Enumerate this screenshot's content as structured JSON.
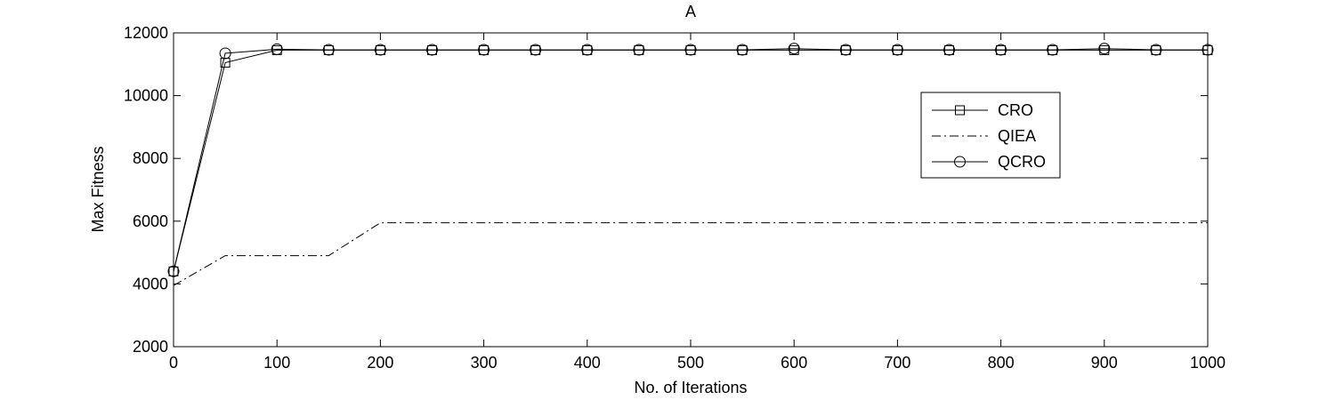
{
  "chart_data": {
    "type": "line",
    "title": "A",
    "xlabel": "No. of Iterations",
    "ylabel": "Max Fitness",
    "xlim": [
      0,
      1000
    ],
    "ylim": [
      2000,
      12000
    ],
    "xticks": [
      0,
      100,
      200,
      300,
      400,
      500,
      600,
      700,
      800,
      900,
      1000
    ],
    "yticks": [
      2000,
      4000,
      6000,
      8000,
      10000,
      12000
    ],
    "grid": false,
    "legend_position": "upper-right",
    "x": [
      0,
      50,
      100,
      150,
      200,
      250,
      300,
      350,
      400,
      450,
      500,
      550,
      600,
      650,
      700,
      750,
      800,
      850,
      900,
      950,
      1000
    ],
    "series": [
      {
        "name": "CRO",
        "marker": "square",
        "line_style": "solid",
        "color": "#000000",
        "values": [
          4400,
          11050,
          11450,
          11450,
          11450,
          11450,
          11450,
          11450,
          11450,
          11450,
          11450,
          11450,
          11450,
          11450,
          11450,
          11450,
          11450,
          11450,
          11450,
          11450,
          11450
        ]
      },
      {
        "name": "QIEA",
        "marker": "none",
        "line_style": "dash-dot",
        "color": "#000000",
        "values": [
          3950,
          4900,
          4900,
          4900,
          5950,
          5950,
          5950,
          5950,
          5950,
          5950,
          5950,
          5950,
          5950,
          5950,
          5950,
          5950,
          5950,
          5950,
          5950,
          5950,
          5950
        ]
      },
      {
        "name": "QCRO",
        "marker": "circle",
        "line_style": "solid",
        "color": "#000000",
        "values": [
          4400,
          11350,
          11480,
          11460,
          11460,
          11460,
          11460,
          11460,
          11460,
          11460,
          11460,
          11460,
          11500,
          11460,
          11460,
          11460,
          11460,
          11460,
          11500,
          11460,
          11460
        ]
      }
    ]
  }
}
